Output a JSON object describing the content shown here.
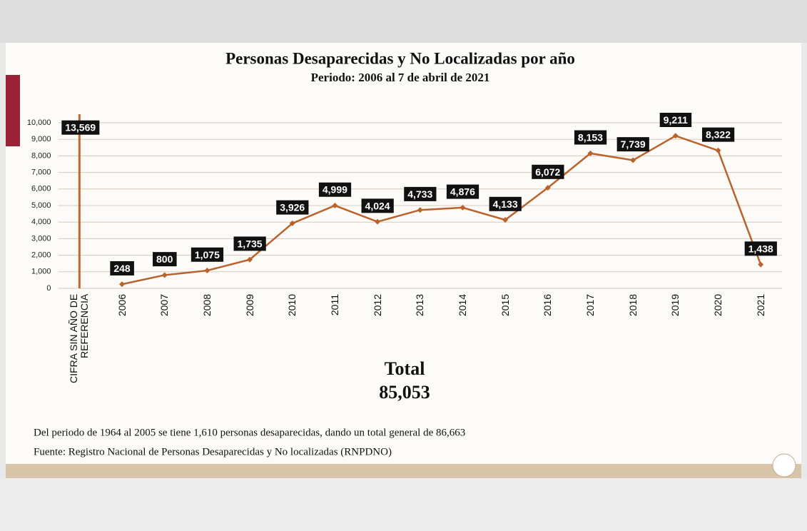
{
  "chart_data": {
    "type": "line",
    "title": "Personas Desaparecidas y No Localizadas por año",
    "subtitle": "Periodo: 2006 al 7 de abril de 2021",
    "categories": [
      "CIFRA SIN AÑO DE REFERENCIA",
      "2006",
      "2007",
      "2008",
      "2009",
      "2010",
      "2011",
      "2012",
      "2013",
      "2014",
      "2015",
      "2016",
      "2017",
      "2018",
      "2019",
      "2020",
      "2021"
    ],
    "series": [
      {
        "type": "bar",
        "color": "#c0682e",
        "values": [
          13569,
          null,
          null,
          null,
          null,
          null,
          null,
          null,
          null,
          null,
          null,
          null,
          null,
          null,
          null,
          null,
          null
        ],
        "value_labels": [
          "13,569",
          null,
          null,
          null,
          null,
          null,
          null,
          null,
          null,
          null,
          null,
          null,
          null,
          null,
          null,
          null,
          null
        ]
      },
      {
        "type": "line",
        "color": "#b8632c",
        "values": [
          null,
          248,
          800,
          1075,
          1735,
          3926,
          4999,
          4024,
          4733,
          4876,
          4133,
          6072,
          8153,
          7739,
          9211,
          8322,
          1438
        ],
        "value_labels": [
          null,
          "248",
          "800",
          "1,075",
          "1,735",
          "3,926",
          "4,999",
          "4,024",
          "4,733",
          "4,876",
          "4,133",
          "6,072",
          "8,153",
          "7,739",
          "9,211",
          "8,322",
          "1,438"
        ]
      }
    ],
    "ylim": [
      0,
      10000
    ],
    "yticks": [
      0,
      {
        "value": 1000,
        "label": "1,000"
      },
      {
        "value": 2000,
        "label": "2,000"
      },
      {
        "value": 3000,
        "label": "3,000"
      },
      {
        "value": 4000,
        "label": "4,000"
      },
      {
        "value": 5000,
        "label": "5,000"
      },
      {
        "value": 6000,
        "label": "6,000"
      },
      {
        "value": 7000,
        "label": "7,000"
      },
      {
        "value": 8000,
        "label": "8,000"
      },
      {
        "value": 9000,
        "label": "9,000"
      },
      {
        "value": 10000,
        "label": "10,000"
      }
    ],
    "grid": true,
    "total_label": "Total",
    "total_value": "85,053",
    "note": "Del periodo de 1964 al 2005 se tiene 1,610 personas desaparecidas, dando un total general de 86,663",
    "source": "Fuente: Registro Nacional de Personas Desaparecidas y No localizadas (RNPDNO)"
  }
}
